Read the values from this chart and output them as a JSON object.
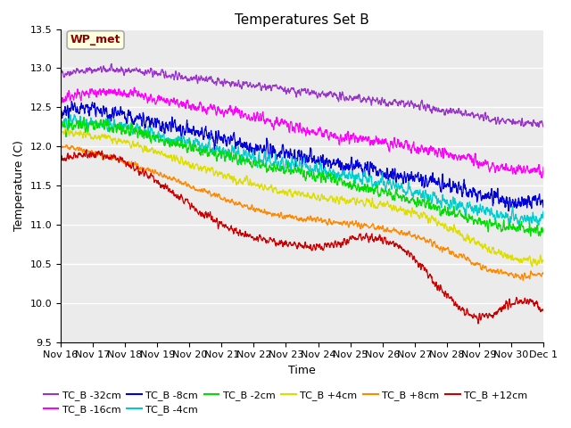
{
  "title": "Temperatures Set B",
  "xlabel": "Time",
  "ylabel": "Temperature (C)",
  "ylim": [
    9.5,
    13.5
  ],
  "xlim_days": [
    0,
    15
  ],
  "x_tick_labels": [
    "Nov 16",
    "Nov 17",
    "Nov 18",
    "Nov 19",
    "Nov 20",
    "Nov 21",
    "Nov 22",
    "Nov 23",
    "Nov 24",
    "Nov 25",
    "Nov 26",
    "Nov 27",
    "Nov 28",
    "Nov 29",
    "Nov 30",
    "Dec 1"
  ],
  "annotation_label": "WP_met",
  "annotation_color": "#8B0000",
  "annotation_bg": "#FFFFE0",
  "annotation_border": "#AAAAAA",
  "bg_color": "#EBEBEB",
  "series": [
    {
      "label": "TC_B -32cm",
      "color": "#9933CC",
      "noise": 0.055,
      "waypoints": [
        [
          0,
          12.93
        ],
        [
          2,
          12.97
        ],
        [
          4,
          12.88
        ],
        [
          7,
          12.72
        ],
        [
          9,
          12.62
        ],
        [
          11,
          12.52
        ],
        [
          13,
          12.38
        ],
        [
          15,
          12.28
        ]
      ]
    },
    {
      "label": "TC_B -16cm",
      "color": "#FF00FF",
      "noise": 0.075,
      "waypoints": [
        [
          0,
          12.6
        ],
        [
          2,
          12.68
        ],
        [
          4,
          12.52
        ],
        [
          6,
          12.38
        ],
        [
          8,
          12.18
        ],
        [
          10,
          12.05
        ],
        [
          12,
          11.9
        ],
        [
          14,
          11.72
        ],
        [
          15,
          11.68
        ]
      ]
    },
    {
      "label": "TC_B -8cm",
      "color": "#0000DD",
      "noise": 0.11,
      "waypoints": [
        [
          0,
          12.46
        ],
        [
          1,
          12.48
        ],
        [
          3,
          12.3
        ],
        [
          5,
          12.1
        ],
        [
          7,
          11.9
        ],
        [
          9,
          11.75
        ],
        [
          11,
          11.6
        ],
        [
          13,
          11.4
        ],
        [
          15,
          11.28
        ]
      ]
    },
    {
      "label": "TC_B -4cm",
      "color": "#00CCCC",
      "noise": 0.09,
      "waypoints": [
        [
          0,
          12.28
        ],
        [
          1,
          12.3
        ],
        [
          3,
          12.15
        ],
        [
          5,
          11.95
        ],
        [
          7,
          11.78
        ],
        [
          9,
          11.62
        ],
        [
          11,
          11.42
        ],
        [
          13,
          11.18
        ],
        [
          15,
          11.05
        ]
      ]
    },
    {
      "label": "TC_B -2cm",
      "color": "#00DD00",
      "noise": 0.08,
      "waypoints": [
        [
          0,
          12.25
        ],
        [
          1,
          12.28
        ],
        [
          3,
          12.1
        ],
        [
          5,
          11.88
        ],
        [
          7,
          11.7
        ],
        [
          9,
          11.52
        ],
        [
          11,
          11.3
        ],
        [
          13,
          11.05
        ],
        [
          15,
          10.93
        ]
      ]
    },
    {
      "label": "TC_B +4cm",
      "color": "#DDDD00",
      "noise": 0.055,
      "waypoints": [
        [
          0,
          12.18
        ],
        [
          2,
          12.05
        ],
        [
          4,
          11.78
        ],
        [
          6,
          11.52
        ],
        [
          8,
          11.35
        ],
        [
          10,
          11.25
        ],
        [
          11,
          11.15
        ],
        [
          13,
          10.75
        ],
        [
          15,
          10.55
        ]
      ]
    },
    {
      "label": "TC_B +8cm",
      "color": "#FF8800",
      "noise": 0.04,
      "waypoints": [
        [
          0,
          12.0
        ],
        [
          2,
          11.8
        ],
        [
          4,
          11.5
        ],
        [
          6,
          11.2
        ],
        [
          8,
          11.05
        ],
        [
          10,
          10.95
        ],
        [
          11,
          10.85
        ],
        [
          13,
          10.48
        ],
        [
          15,
          10.38
        ]
      ]
    },
    {
      "label": "TC_B +12cm",
      "color": "#CC0000",
      "noise": 0.055,
      "waypoints": [
        [
          0,
          11.82
        ],
        [
          1,
          11.9
        ],
        [
          3,
          11.55
        ],
        [
          5,
          11.0
        ],
        [
          7,
          10.75
        ],
        [
          8,
          10.72
        ],
        [
          9,
          10.8
        ],
        [
          10,
          10.82
        ],
        [
          11,
          10.55
        ],
        [
          12,
          10.1
        ],
        [
          13,
          9.82
        ],
        [
          14,
          9.98
        ],
        [
          15,
          9.88
        ]
      ]
    }
  ],
  "legend_ncol": 6,
  "legend_fontsize": 8,
  "title_fontsize": 11,
  "label_fontsize": 9,
  "tick_fontsize": 8
}
